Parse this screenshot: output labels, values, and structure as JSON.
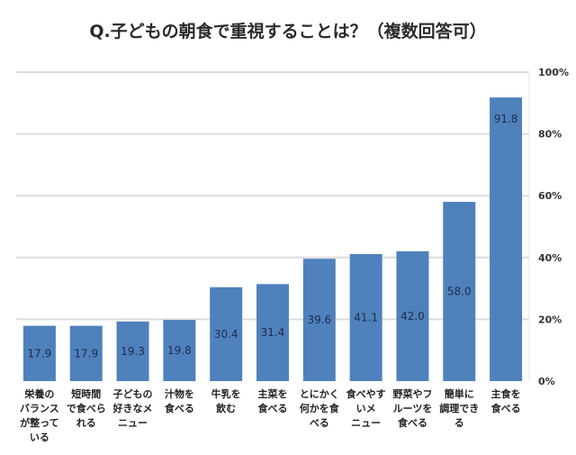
{
  "chart_data": {
    "type": "bar",
    "title": "Q.子どもの朝食で重視することは？（複数回答可）",
    "xlabel": "",
    "ylabel": "",
    "ylim": [
      0,
      100
    ],
    "yticks": [
      "0%",
      "20%",
      "40%",
      "60%",
      "80%",
      "100%"
    ],
    "y_axis_side": "right",
    "grid": true,
    "bar_color": "#4f81bd",
    "categories": [
      "栄養の\nバランス\nが整って\nいる",
      "短時間\nで食べら\nれる",
      "子どもの\n好きなメ\nニュー",
      "汁物を\n食べる",
      "牛乳を\n飲む",
      "主菜を\n食べる",
      "とにかく\n何かを食\nべる",
      "食べやす\nいメ\nニュー",
      "野菜やフ\nルーツを\n食べる",
      "簡単に\n調理でき\nる",
      "主食を\n食べる"
    ],
    "values": [
      17.9,
      17.9,
      19.3,
      19.8,
      30.4,
      31.4,
      39.6,
      41.1,
      42.0,
      58.0,
      91.8
    ],
    "data_labels": [
      "17.9",
      "17.9",
      "19.3",
      "19.8",
      "30.4",
      "31.4",
      "39.6",
      "41.1",
      "42.0",
      "58.0",
      "91.8"
    ]
  }
}
